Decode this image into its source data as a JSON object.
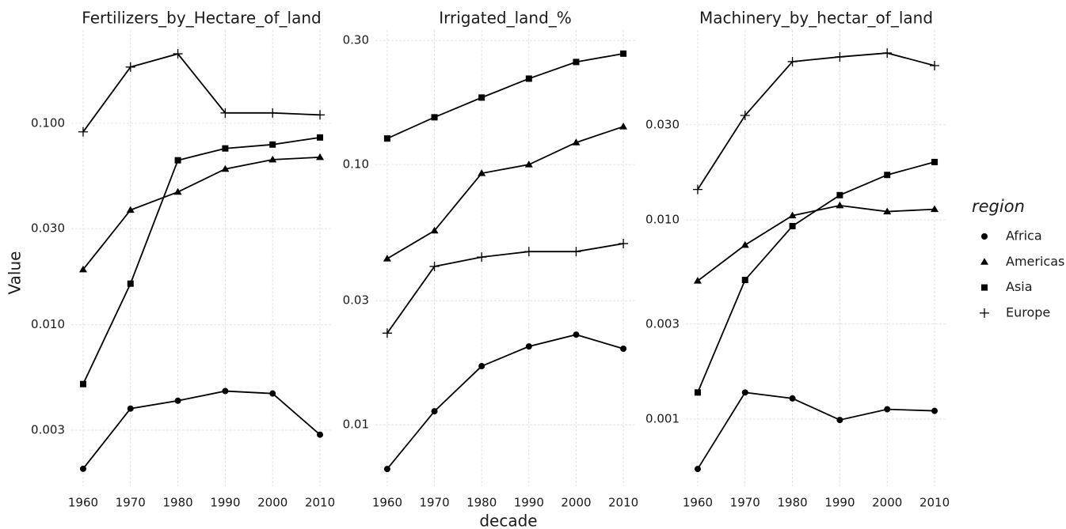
{
  "y_label": "Value",
  "x_label": "decade",
  "legend_title": "region",
  "chart_data": [
    {
      "type": "line",
      "title": "Fertilizers_by_Hectare_of_land",
      "log_y": true,
      "grid": true,
      "x": [
        1960,
        1970,
        1980,
        1990,
        2000,
        2010
      ],
      "xlim": [
        1957.5,
        2012.5
      ],
      "xticks": [
        1960,
        1970,
        1980,
        1990,
        2000,
        2010
      ],
      "ylim": [
        0.00158,
        0.29
      ],
      "yticks": [
        {
          "value": 0.003,
          "label": "0.003"
        },
        {
          "value": 0.01,
          "label": "0.010"
        },
        {
          "value": 0.03,
          "label": "0.030"
        },
        {
          "value": 0.1,
          "label": "0.100"
        }
      ],
      "series": [
        {
          "name": "Africa",
          "shape": "circle",
          "color": "#000000",
          "values": [
            0.00193,
            0.00384,
            0.0042,
            0.00469,
            0.00456,
            0.00285
          ]
        },
        {
          "name": "Americas",
          "shape": "triangle",
          "color": "#000000",
          "values": [
            0.0188,
            0.0371,
            0.0456,
            0.0593,
            0.066,
            0.0678
          ]
        },
        {
          "name": "Asia",
          "shape": "square",
          "color": "#000000",
          "values": [
            0.00508,
            0.016,
            0.0655,
            0.075,
            0.0784,
            0.085
          ]
        },
        {
          "name": "Europe",
          "shape": "plus",
          "color": "#000000",
          "values": [
            0.0906,
            0.19,
            0.221,
            0.1125,
            0.1125,
            0.11
          ]
        }
      ]
    },
    {
      "type": "line",
      "title": "Irrigated_land_%",
      "log_y": true,
      "grid": true,
      "x": [
        1960,
        1970,
        1980,
        1990,
        2000,
        2010
      ],
      "xlim": [
        1957.5,
        2012.5
      ],
      "xticks": [
        1960,
        1970,
        1980,
        1990,
        2000,
        2010
      ],
      "ylim": [
        0.0058,
        0.329
      ],
      "yticks": [
        {
          "value": 0.01,
          "label": "0.01"
        },
        {
          "value": 0.03,
          "label": "0.03"
        },
        {
          "value": 0.1,
          "label": "0.10"
        },
        {
          "value": 0.3,
          "label": "0.30"
        }
      ],
      "series": [
        {
          "name": "Africa",
          "shape": "circle",
          "color": "#000000",
          "values": [
            0.00676,
            0.01127,
            0.0168,
            0.02,
            0.0222,
            0.0196
          ]
        },
        {
          "name": "Americas",
          "shape": "triangle",
          "color": "#000000",
          "values": [
            0.0435,
            0.0557,
            0.0926,
            0.1,
            0.1216,
            0.14
          ]
        },
        {
          "name": "Asia",
          "shape": "square",
          "color": "#000000",
          "values": [
            0.126,
            0.152,
            0.181,
            0.214,
            0.248,
            0.267
          ]
        },
        {
          "name": "Europe",
          "shape": "plus",
          "color": "#000000",
          "values": [
            0.0225,
            0.0406,
            0.0441,
            0.0463,
            0.0463,
            0.0497
          ]
        }
      ]
    },
    {
      "type": "line",
      "title": "Machinery_by_hectar_of_land",
      "log_y": true,
      "grid": true,
      "x": [
        1960,
        1970,
        1980,
        1990,
        2000,
        2010
      ],
      "xlim": [
        1957.5,
        2012.5
      ],
      "xticks": [
        1960,
        1970,
        1980,
        1990,
        2000,
        2010
      ],
      "ylim": [
        0.00046,
        0.0896
      ],
      "yticks": [
        {
          "value": 0.001,
          "label": "0.001"
        },
        {
          "value": 0.003,
          "label": "0.003"
        },
        {
          "value": 0.01,
          "label": "0.010"
        },
        {
          "value": 0.03,
          "label": "0.030"
        }
      ],
      "series": [
        {
          "name": "Africa",
          "shape": "circle",
          "color": "#000000",
          "values": [
            0.000562,
            0.00136,
            0.00127,
            0.00099,
            0.00112,
            0.0011
          ]
        },
        {
          "name": "Americas",
          "shape": "triangle",
          "color": "#000000",
          "values": [
            0.00494,
            0.00747,
            0.0105,
            0.0118,
            0.011,
            0.0113
          ]
        },
        {
          "name": "Asia",
          "shape": "square",
          "color": "#000000",
          "values": [
            0.00136,
            0.00499,
            0.0093,
            0.0133,
            0.0168,
            0.0195
          ]
        },
        {
          "name": "Europe",
          "shape": "plus",
          "color": "#000000",
          "values": [
            0.0142,
            0.0334,
            0.0622,
            0.0657,
            0.0687,
            0.0594
          ]
        }
      ]
    }
  ]
}
